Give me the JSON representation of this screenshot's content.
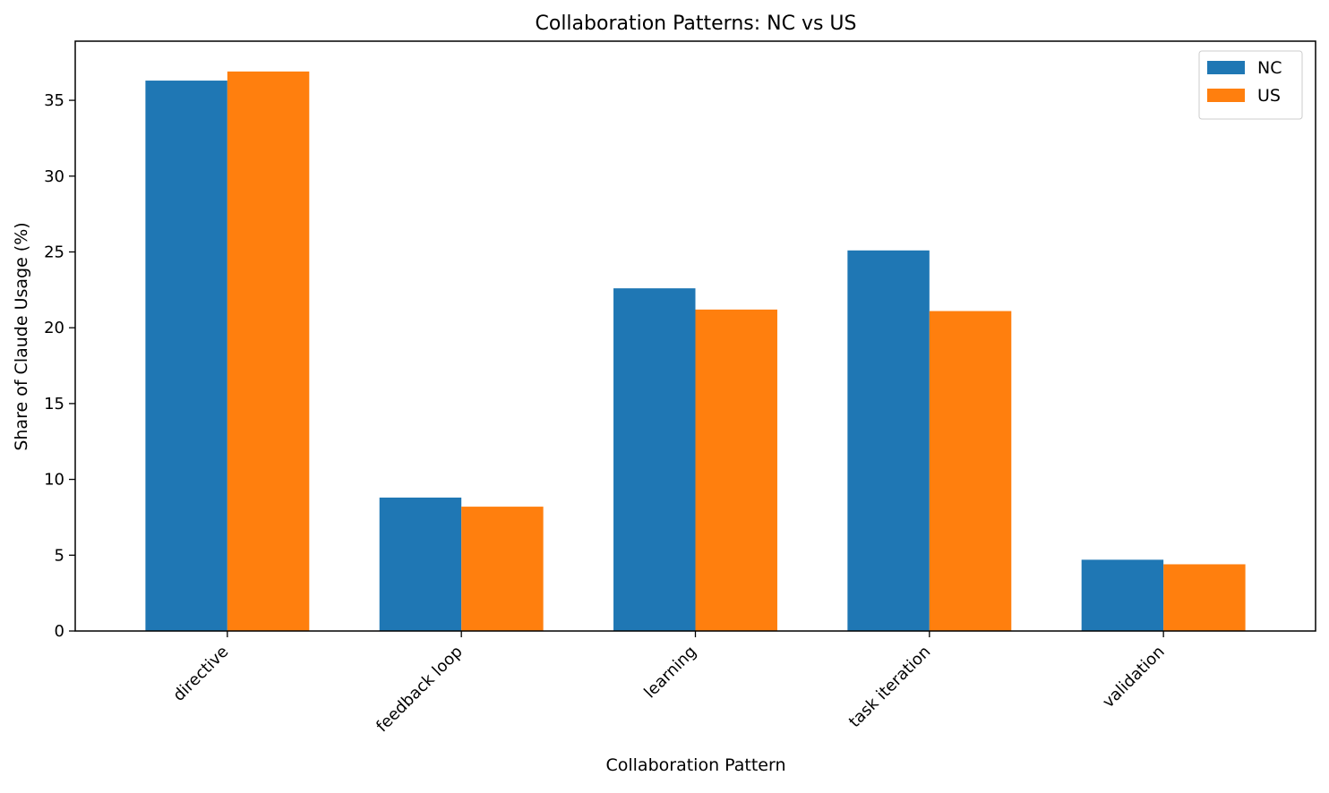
{
  "chart_data": {
    "type": "bar",
    "title": "Collaboration Patterns: NC vs US",
    "xlabel": "Collaboration Pattern",
    "ylabel": "Share of Claude Usage (%)",
    "categories": [
      "directive",
      "feedback loop",
      "learning",
      "task iteration",
      "validation"
    ],
    "series": [
      {
        "name": "NC",
        "color": "#1f77b4",
        "values": [
          36.3,
          8.8,
          22.6,
          25.1,
          4.7
        ]
      },
      {
        "name": "US",
        "color": "#ff7f0e",
        "values": [
          36.9,
          8.2,
          21.2,
          21.1,
          4.4
        ]
      }
    ],
    "ylim": [
      0,
      38.9
    ],
    "yticks": [
      0,
      5,
      10,
      15,
      20,
      25,
      30,
      35
    ],
    "grid": false,
    "legend": "top-right"
  }
}
